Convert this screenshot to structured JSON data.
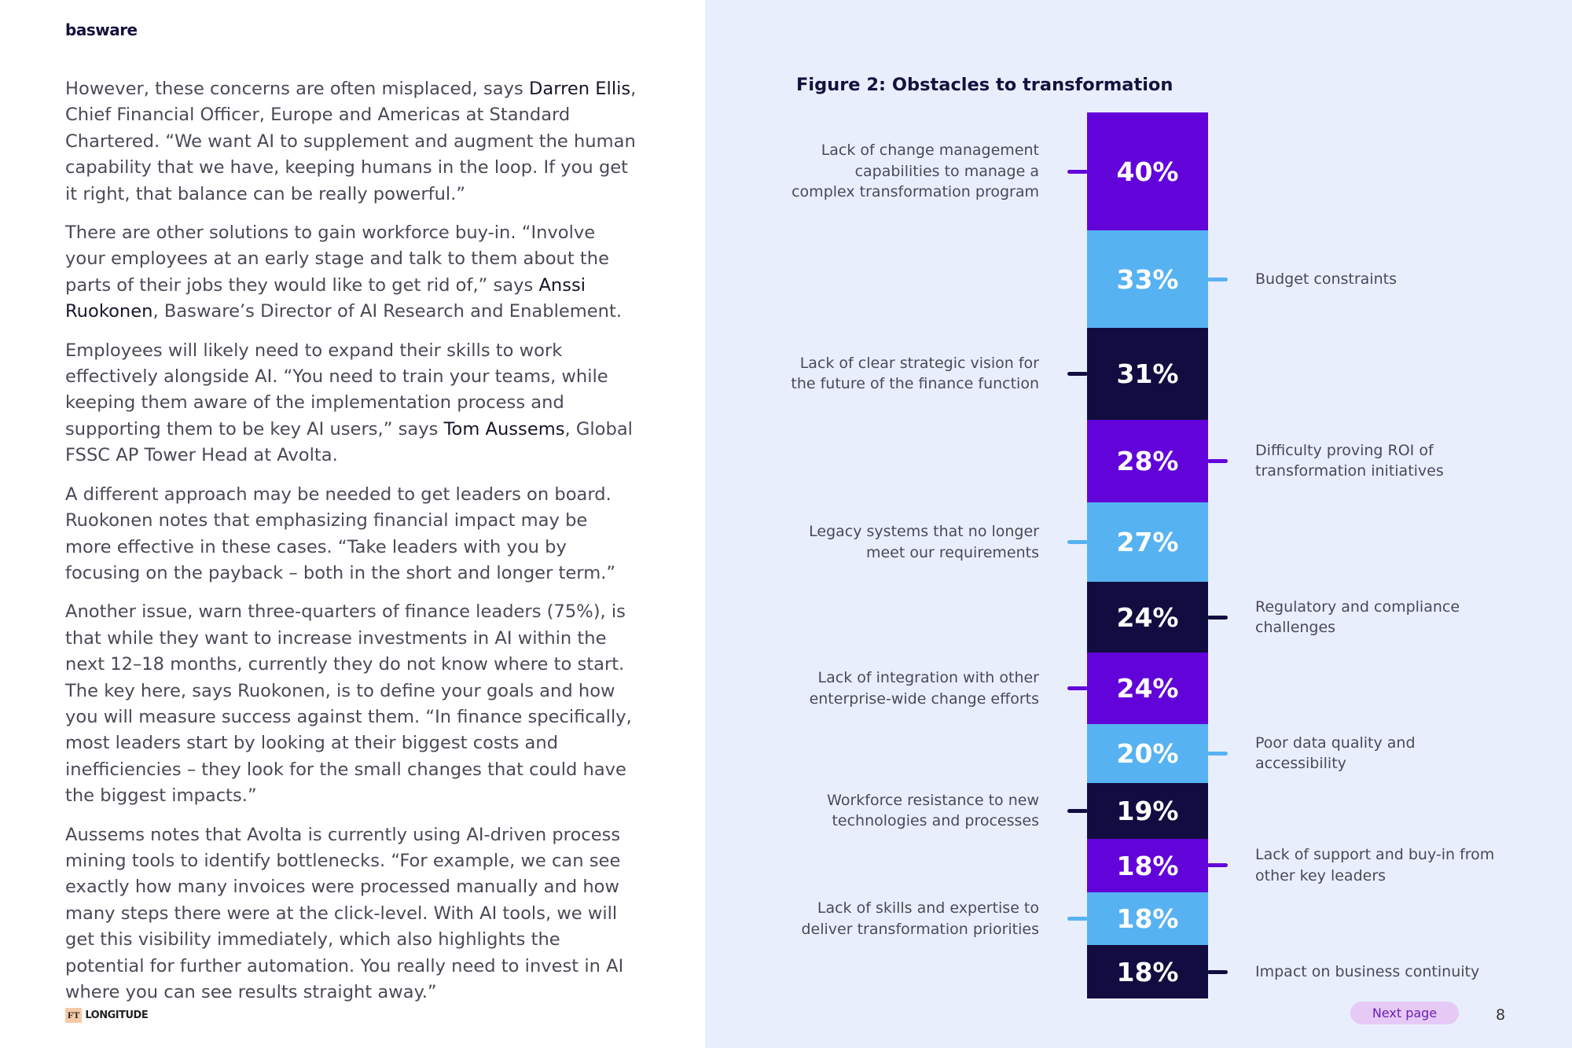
{
  "brand": {
    "logo": "basware",
    "footer_logo_box": "FT",
    "footer_logo_word": "LONGITUDE"
  },
  "article": {
    "p1": {
      "a": "However, these concerns are often misplaced, says ",
      "name": "Darren Ellis",
      "b": ", Chief Financial Officer, Europe and Americas at Standard Chartered. “We want AI to supplement and augment the human capability that we have, keeping humans in the loop. If you get it right, that balance can be really powerful.”"
    },
    "p2": {
      "a": "There are other solutions to gain workforce buy-in. “Involve your employees at an early stage and talk to them about the parts of their jobs they would like to get rid of,” says ",
      "name": "Anssi Ruokonen",
      "b": ", Basware’s Director of AI Research and Enablement."
    },
    "p3": {
      "a": "Employees will likely need to expand their skills to work effectively alongside AI. “You need to train your teams, while keeping them aware of the implementation process and supporting them to be key AI users,” says ",
      "name": "Tom Aussems",
      "b": ", Global FSSC AP Tower Head at Avolta."
    },
    "p4": "A different approach may be needed to get leaders on board. Ruokonen notes that emphasizing financial impact may be more effective in these cases. “Take leaders with you by focusing on the payback – both in the short and longer term.”",
    "p5": "Another issue, warn three-quarters of finance leaders (75%), is that while they want to increase investments in AI within the next 12–18 months, currently they do not know where to start. The key here, says Ruokonen, is to define your goals and how you will measure success against them. “In finance specifically, most leaders start by looking at their biggest costs and inefficiencies – they look for the small changes that could have the biggest impacts.”",
    "p6": "Aussems notes that Avolta is currently using AI-driven process mining tools to identify bottlenecks. “For example, we can see exactly how many invoices were processed manually and how many steps there were at the click-level. With AI tools, we will get this visibility immediately, which also highlights the potential for further automation. You really need to invest in AI where you can see results straight away.”"
  },
  "chart_data": {
    "type": "bar",
    "title": "Figure 2: Obstacles to transformation",
    "orientation": "stacked-column",
    "unit": "%",
    "colors": {
      "purple": "#6204d9",
      "light_blue": "#57b2f2",
      "navy": "#120d40"
    },
    "categories": [
      "Lack of change management capabilities to manage a complex transformation program",
      "Budget constraints",
      "Lack of clear strategic vision for the future of the finance function",
      "Difficulty proving ROI of transformation initiatives",
      "Legacy systems that no longer meet our requirements",
      "Regulatory and compliance challenges",
      "Lack of integration with other enterprise-wide change efforts",
      "Poor data quality and accessibility",
      "Workforce resistance to new technologies and processes",
      "Lack of support and buy-in from other key leaders",
      "Lack of skills and expertise to deliver transformation priorities",
      "Impact on business continuity"
    ],
    "values": [
      40,
      33,
      31,
      28,
      27,
      24,
      24,
      20,
      19,
      18,
      18,
      18
    ],
    "value_labels": [
      "40%",
      "33%",
      "31%",
      "28%",
      "27%",
      "24%",
      "24%",
      "20%",
      "19%",
      "18%",
      "18%",
      "18%"
    ],
    "label_side": [
      "left",
      "right",
      "left",
      "right",
      "left",
      "right",
      "left",
      "right",
      "left",
      "right",
      "left",
      "right"
    ],
    "segment_colors": [
      "purple",
      "light_blue",
      "navy",
      "purple",
      "light_blue",
      "navy",
      "purple",
      "light_blue",
      "navy",
      "purple",
      "light_blue",
      "navy"
    ]
  },
  "navigation": {
    "next_page": "Next page",
    "page_number": "8"
  }
}
